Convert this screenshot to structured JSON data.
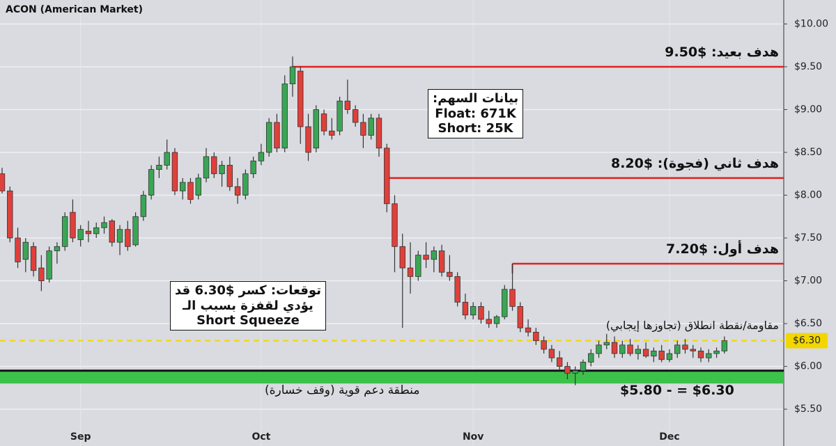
{
  "chart_data": {
    "type": "candlestick",
    "title": "ACON (American Market)",
    "categories": [
      null,
      null,
      null,
      null,
      null,
      null,
      null,
      null,
      null,
      null,
      "Sep",
      null,
      null,
      null,
      null,
      null,
      null,
      null,
      null,
      null,
      null,
      null,
      null,
      null,
      null,
      null,
      null,
      null,
      null,
      null,
      null,
      null,
      null,
      "Oct",
      null,
      null,
      null,
      null,
      null,
      null,
      null,
      null,
      null,
      null,
      null,
      null,
      null,
      null,
      null,
      null,
      null,
      null,
      null,
      null,
      null,
      null,
      null,
      null,
      null,
      null,
      "Nov",
      null,
      null,
      null,
      null,
      null,
      null,
      null,
      null,
      null,
      null,
      null,
      null,
      null,
      null,
      null,
      null,
      null,
      null,
      null,
      null,
      null,
      null,
      null,
      null,
      "Dec",
      null,
      null,
      null,
      null,
      null,
      null,
      null
    ],
    "open": [
      8.25,
      8.05,
      7.5,
      7.25,
      7.4,
      7.15,
      7.02,
      7.35,
      7.4,
      7.8,
      7.48,
      7.58,
      7.55,
      7.62,
      7.7,
      7.45,
      7.6,
      7.42,
      7.75,
      8.0,
      8.3,
      8.35,
      8.5,
      8.05,
      8.15,
      8.0,
      8.2,
      8.45,
      8.25,
      8.35,
      8.1,
      8.0,
      8.25,
      8.4,
      8.5,
      8.85,
      8.55,
      9.3,
      9.45,
      8.8,
      8.55,
      8.95,
      8.75,
      8.75,
      9.1,
      9.0,
      8.85,
      8.7,
      8.9,
      8.55,
      7.9,
      7.4,
      7.15,
      7.05,
      7.3,
      7.25,
      7.35,
      7.1,
      7.05,
      6.75,
      6.6,
      6.7,
      6.55,
      6.5,
      6.58,
      6.9,
      6.7,
      6.45,
      6.4,
      6.3,
      6.2,
      6.1,
      6.0,
      5.92,
      5.95,
      6.05,
      6.15,
      6.25,
      6.28,
      6.15,
      6.25,
      6.15,
      6.2,
      6.12,
      6.18,
      6.08,
      6.15,
      6.25,
      6.2,
      6.18,
      6.1,
      6.15,
      6.18
    ],
    "high": [
      8.32,
      8.1,
      7.62,
      7.5,
      7.45,
      7.3,
      7.4,
      7.45,
      7.8,
      7.95,
      7.65,
      7.7,
      7.68,
      7.75,
      7.72,
      7.65,
      7.7,
      7.8,
      8.05,
      8.35,
      8.45,
      8.65,
      8.55,
      8.2,
      8.2,
      8.25,
      8.55,
      8.5,
      8.4,
      8.45,
      8.2,
      8.3,
      8.45,
      8.6,
      8.9,
      8.95,
      9.4,
      9.62,
      9.5,
      8.95,
      9.05,
      9.0,
      8.9,
      9.15,
      9.35,
      9.05,
      8.95,
      8.95,
      8.95,
      8.6,
      8.0,
      7.55,
      7.45,
      7.35,
      7.45,
      7.4,
      7.42,
      7.3,
      7.1,
      6.85,
      6.75,
      6.75,
      6.65,
      6.6,
      6.95,
      7.2,
      6.75,
      6.55,
      6.45,
      6.35,
      6.25,
      6.18,
      6.05,
      6.0,
      6.08,
      6.2,
      6.3,
      6.38,
      6.35,
      6.3,
      6.32,
      6.25,
      6.28,
      6.22,
      6.25,
      6.2,
      6.3,
      6.32,
      6.25,
      6.22,
      6.2,
      6.22,
      6.35
    ],
    "low": [
      8.02,
      7.45,
      7.15,
      7.1,
      7.05,
      6.88,
      6.98,
      7.2,
      7.35,
      7.45,
      7.4,
      7.45,
      7.5,
      7.55,
      7.4,
      7.3,
      7.35,
      7.4,
      7.7,
      7.95,
      8.2,
      8.3,
      8.0,
      7.95,
      7.9,
      7.95,
      8.15,
      8.2,
      8.1,
      8.05,
      7.9,
      7.95,
      8.2,
      8.35,
      8.45,
      8.5,
      8.5,
      9.15,
      8.6,
      8.4,
      8.5,
      8.7,
      8.65,
      8.7,
      8.95,
      8.8,
      8.55,
      8.65,
      8.45,
      7.8,
      7.1,
      6.45,
      6.85,
      7.0,
      7.15,
      7.1,
      7.05,
      7.0,
      6.7,
      6.55,
      6.55,
      6.5,
      6.45,
      6.45,
      6.55,
      6.65,
      6.4,
      6.35,
      6.25,
      6.15,
      6.05,
      5.95,
      5.85,
      5.78,
      5.9,
      6.0,
      6.1,
      6.2,
      6.1,
      6.1,
      6.12,
      6.08,
      6.1,
      6.05,
      6.05,
      6.05,
      6.1,
      6.15,
      6.1,
      6.05,
      6.05,
      6.1,
      6.15
    ],
    "close": [
      8.05,
      7.5,
      7.22,
      7.45,
      7.12,
      7.0,
      7.35,
      7.4,
      7.75,
      7.5,
      7.6,
      7.55,
      7.62,
      7.68,
      7.45,
      7.6,
      7.4,
      7.75,
      8.0,
      8.3,
      8.35,
      8.5,
      8.05,
      8.15,
      7.95,
      8.2,
      8.45,
      8.25,
      8.35,
      8.1,
      8.0,
      8.25,
      8.4,
      8.5,
      8.85,
      8.55,
      9.3,
      9.5,
      8.8,
      8.5,
      9.0,
      8.75,
      8.7,
      9.1,
      9.0,
      8.85,
      8.7,
      8.9,
      8.55,
      7.9,
      7.4,
      7.15,
      7.05,
      7.3,
      7.25,
      7.35,
      7.1,
      7.05,
      6.75,
      6.6,
      6.7,
      6.55,
      6.5,
      6.58,
      6.9,
      6.7,
      6.45,
      6.4,
      6.3,
      6.2,
      6.1,
      6.0,
      5.92,
      5.95,
      6.05,
      6.15,
      6.25,
      6.28,
      6.15,
      6.25,
      6.15,
      6.2,
      6.12,
      6.18,
      6.08,
      6.15,
      6.25,
      6.2,
      6.18,
      6.1,
      6.15,
      6.18,
      6.3
    ],
    "up_color": "#3aa655",
    "down_color": "#e0403a",
    "ylim": [
      5.07,
      10.28
    ],
    "yticks": [
      {
        "value": 5.5,
        "label": "$5.50"
      },
      {
        "value": 6,
        "label": "$6.00"
      },
      {
        "value": 6.5,
        "label": "$6.50"
      },
      {
        "value": 7,
        "label": "$7.00"
      },
      {
        "value": 7.5,
        "label": "$7.50"
      },
      {
        "value": 8,
        "label": "$8.00"
      },
      {
        "value": 8.5,
        "label": "$8.50"
      },
      {
        "value": 9,
        "label": "$9.00"
      },
      {
        "value": 9.5,
        "label": "$9.50"
      },
      {
        "value": 10,
        "label": "$10.00"
      }
    ],
    "grid": true,
    "levels": [
      {
        "value": 9.5,
        "label": "هدف بعيد: $9.50",
        "color": "#e02020"
      },
      {
        "value": 8.2,
        "label": "هدف ثاني (فجوة): $8.20",
        "color": "#e02020"
      },
      {
        "value": 7.2,
        "label": "هدف أول: $7.20",
        "color": "#e02020"
      }
    ],
    "resistance": {
      "value": 6.3,
      "label": "مقاومة/نقطة انطلاق (تجاوزها إيجابي)",
      "tag": "$6.30",
      "color": "#f2d600"
    },
    "zone": {
      "low": 5.8,
      "high": 5.95,
      "color": "#3cc24a",
      "label": "منطقة دعم قوية (وقف خسارة)",
      "range_label": "$5.80 - = $6.30"
    },
    "info_box": [
      "بيانات السهم:",
      "Float: 671K",
      "Short: 25K"
    ],
    "outlook_box": [
      "توقعات: كسر $6.30 قد",
      "يؤدي لقفزة بسبب الـ",
      "Short Squeeze"
    ]
  }
}
